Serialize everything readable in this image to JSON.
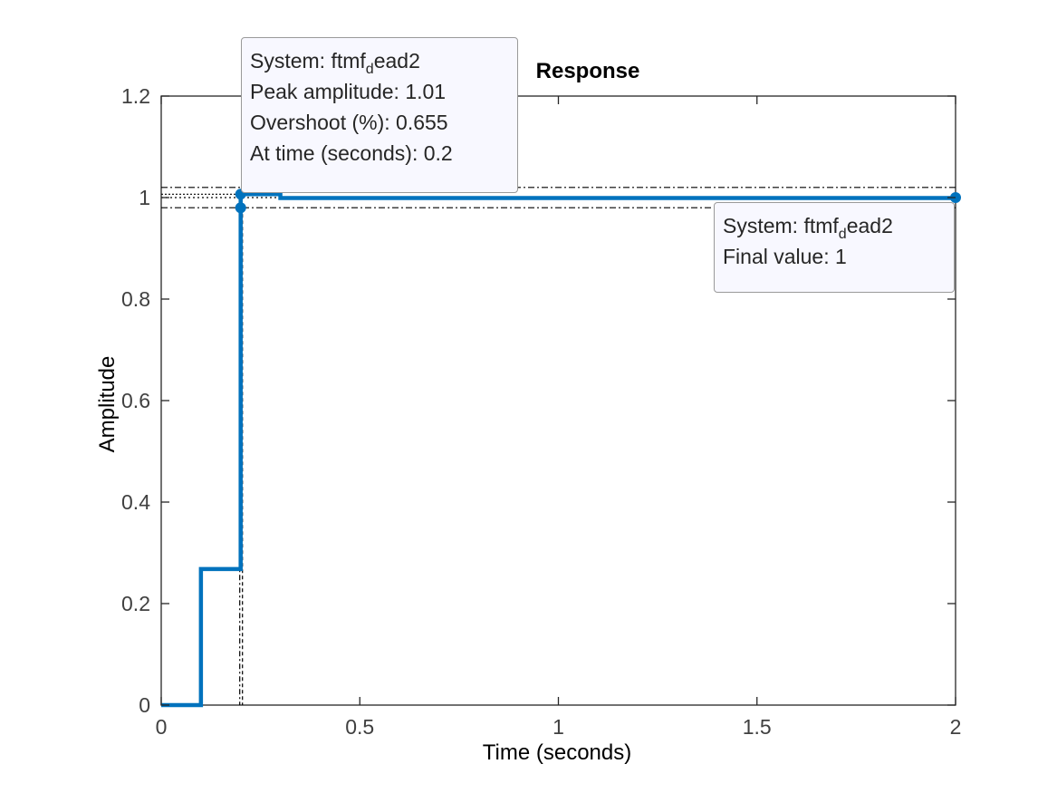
{
  "chart_data": {
    "type": "line",
    "title": "Response",
    "xlabel": "Time (seconds)",
    "ylabel": "Amplitude",
    "xlim": [
      0,
      2
    ],
    "ylim": [
      0,
      1.2
    ],
    "xticks": [
      "0",
      "0.5",
      "1",
      "1.5",
      "2"
    ],
    "yticks": [
      "0",
      "0.2",
      "0.4",
      "0.6",
      "0.8",
      "1",
      "1.2"
    ],
    "grid": false,
    "series": [
      {
        "color": "#0072BD",
        "step": true,
        "x": [
          0,
          0.1,
          0.2,
          0.3,
          2
        ],
        "y": [
          0,
          0.268,
          1.0066,
          0.999,
          1.0
        ]
      }
    ],
    "reference_lines": {
      "final_value": 1.0,
      "settling_band": [
        0.98,
        1.02
      ],
      "peak_value": 1.0066,
      "peak_time": 0.2
    },
    "markers": [
      {
        "x": 0.2,
        "y": 1.0066
      },
      {
        "x": 0.2,
        "y": 0.98
      },
      {
        "x": 2,
        "y": 1.0
      }
    ],
    "annotations": [
      {
        "anchor": "peak",
        "system_prefix": "System: ftmf",
        "system_sub": "d",
        "system_suffix": "ead2",
        "lines": [
          "Peak amplitude: 1.01",
          "Overshoot (%): 0.655",
          "At time (seconds): 0.2"
        ]
      },
      {
        "anchor": "final",
        "system_prefix": "System: ftmf",
        "system_sub": "d",
        "system_suffix": "ead2",
        "lines": [
          "Final value: 1"
        ]
      }
    ]
  }
}
